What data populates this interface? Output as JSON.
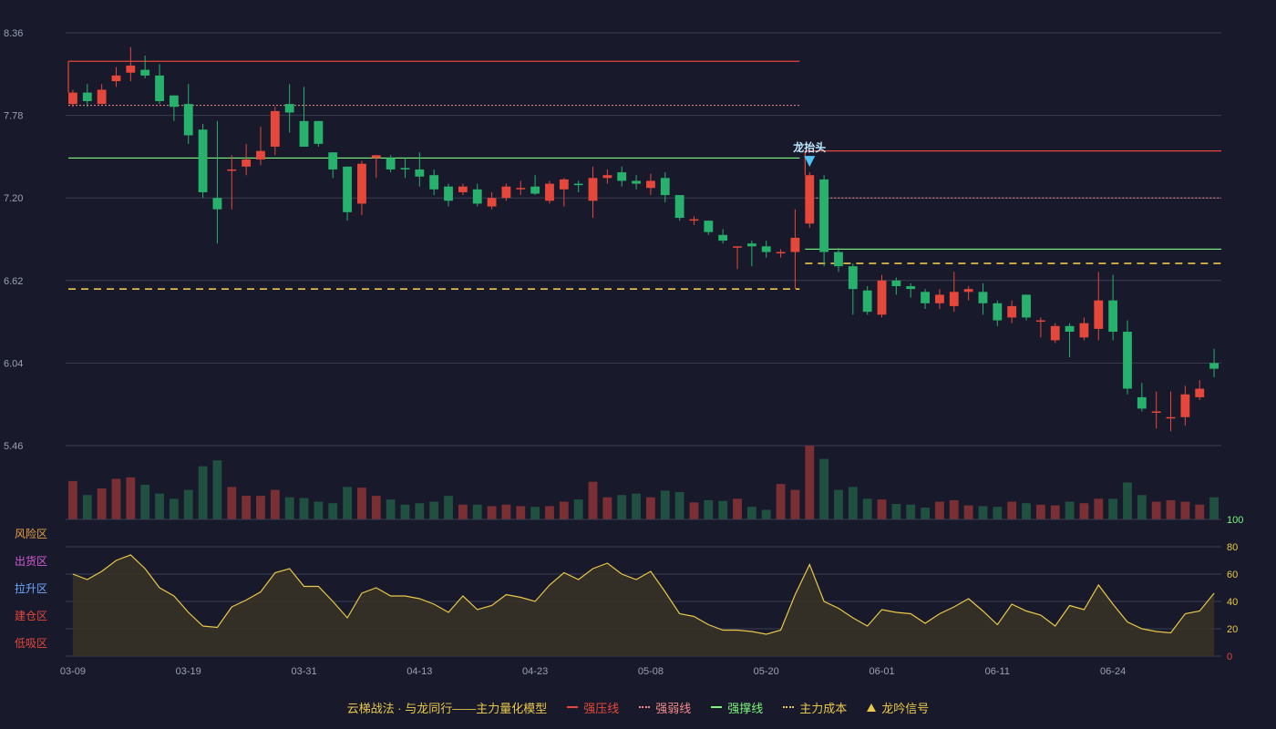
{
  "colors": {
    "up": "#e5473a",
    "down": "#27b16c",
    "vol_up": "#7a2f34",
    "vol_down": "#1f5040",
    "grid": "#3a3d52",
    "resist": "#e5473a",
    "weak": "#f48b8b",
    "support": "#7cf57c",
    "cost": "#e8c84a",
    "signal": "#4fc3f7",
    "osc_line": "#e8c84a",
    "osc_fill": "#3a3426",
    "axis_text": "#9aa0b4"
  },
  "chart_data": {
    "type": "candlestick",
    "price_axis": {
      "ticks": [
        "8.36",
        "7.78",
        "7.20",
        "6.62",
        "6.04",
        "5.46"
      ],
      "range": [
        5.46,
        8.36
      ]
    },
    "dates": [
      "03-09",
      "03-19",
      "03-31",
      "04-13",
      "04-23",
      "05-08",
      "05-20",
      "06-01",
      "06-11",
      "06-24"
    ],
    "date_index": [
      0,
      8,
      16,
      24,
      32,
      40,
      48,
      56,
      64,
      72
    ],
    "ohlc": [
      [
        7.86,
        7.94,
        7.84,
        7.96
      ],
      [
        7.94,
        7.88,
        7.84,
        8.0
      ],
      [
        7.86,
        7.96,
        7.86,
        8.0
      ],
      [
        8.02,
        8.06,
        7.98,
        8.12
      ],
      [
        8.08,
        8.13,
        8.02,
        8.26
      ],
      [
        8.1,
        8.06,
        8.04,
        8.2
      ],
      [
        8.06,
        7.88,
        7.86,
        8.14
      ],
      [
        7.92,
        7.84,
        7.74,
        7.92
      ],
      [
        7.86,
        7.64,
        7.58,
        8.0
      ],
      [
        7.68,
        7.24,
        7.2,
        7.72
      ],
      [
        7.2,
        7.12,
        6.88,
        7.74
      ],
      [
        7.4,
        7.4,
        7.12,
        7.5
      ],
      [
        7.42,
        7.47,
        7.36,
        7.58
      ],
      [
        7.47,
        7.53,
        7.43,
        7.7
      ],
      [
        7.56,
        7.81,
        7.5,
        7.84
      ],
      [
        7.86,
        7.8,
        7.66,
        8.0
      ],
      [
        7.74,
        7.56,
        7.56,
        7.98
      ],
      [
        7.74,
        7.58,
        7.56,
        7.74
      ],
      [
        7.52,
        7.4,
        7.34,
        7.52
      ],
      [
        7.42,
        7.1,
        7.04,
        7.42
      ],
      [
        7.16,
        7.44,
        7.08,
        7.46
      ],
      [
        7.48,
        7.5,
        7.34,
        7.5
      ],
      [
        7.48,
        7.4,
        7.38,
        7.5
      ],
      [
        7.41,
        7.4,
        7.34,
        7.48
      ],
      [
        7.4,
        7.35,
        7.28,
        7.52
      ],
      [
        7.36,
        7.26,
        7.22,
        7.4
      ],
      [
        7.28,
        7.18,
        7.14,
        7.3
      ],
      [
        7.24,
        7.28,
        7.22,
        7.3
      ],
      [
        7.26,
        7.16,
        7.14,
        7.3
      ],
      [
        7.14,
        7.2,
        7.12,
        7.24
      ],
      [
        7.2,
        7.28,
        7.18,
        7.3
      ],
      [
        7.27,
        7.27,
        7.22,
        7.32
      ],
      [
        7.28,
        7.23,
        7.22,
        7.36
      ],
      [
        7.18,
        7.3,
        7.16,
        7.32
      ],
      [
        7.26,
        7.33,
        7.14,
        7.34
      ],
      [
        7.3,
        7.29,
        7.24,
        7.32
      ],
      [
        7.18,
        7.34,
        7.06,
        7.42
      ],
      [
        7.34,
        7.36,
        7.3,
        7.4
      ],
      [
        7.38,
        7.32,
        7.28,
        7.42
      ],
      [
        7.32,
        7.3,
        7.26,
        7.36
      ],
      [
        7.27,
        7.32,
        7.22,
        7.37
      ],
      [
        7.34,
        7.22,
        7.17,
        7.38
      ],
      [
        7.22,
        7.06,
        7.04,
        7.22
      ],
      [
        7.05,
        7.05,
        7.01,
        7.07
      ],
      [
        7.04,
        6.96,
        6.94,
        7.04
      ],
      [
        6.94,
        6.9,
        6.88,
        6.98
      ],
      [
        6.86,
        6.86,
        6.7,
        6.86
      ],
      [
        6.88,
        6.86,
        6.72,
        6.9
      ],
      [
        6.86,
        6.82,
        6.78,
        6.9
      ],
      [
        6.82,
        6.82,
        6.78,
        6.84
      ],
      [
        6.82,
        6.92,
        6.56,
        7.12
      ],
      [
        7.02,
        7.36,
        6.99,
        7.38
      ],
      [
        7.33,
        6.82,
        6.72,
        7.36
      ],
      [
        6.82,
        6.72,
        6.68,
        6.85
      ],
      [
        6.72,
        6.56,
        6.38,
        6.74
      ],
      [
        6.55,
        6.4,
        6.38,
        6.58
      ],
      [
        6.38,
        6.62,
        6.36,
        6.66
      ],
      [
        6.62,
        6.58,
        6.52,
        6.64
      ],
      [
        6.58,
        6.56,
        6.5,
        6.6
      ],
      [
        6.54,
        6.46,
        6.42,
        6.56
      ],
      [
        6.46,
        6.52,
        6.42,
        6.56
      ],
      [
        6.44,
        6.54,
        6.4,
        6.68
      ],
      [
        6.54,
        6.56,
        6.48,
        6.58
      ],
      [
        6.54,
        6.46,
        6.38,
        6.6
      ],
      [
        6.46,
        6.34,
        6.3,
        6.48
      ],
      [
        6.36,
        6.44,
        6.32,
        6.48
      ],
      [
        6.52,
        6.36,
        6.34,
        6.52
      ],
      [
        6.34,
        6.34,
        6.22,
        6.36
      ],
      [
        6.2,
        6.3,
        6.18,
        6.32
      ],
      [
        6.3,
        6.26,
        6.08,
        6.32
      ],
      [
        6.22,
        6.32,
        6.2,
        6.36
      ],
      [
        6.28,
        6.48,
        6.2,
        6.68
      ],
      [
        6.48,
        6.26,
        6.2,
        6.66
      ],
      [
        6.26,
        5.86,
        5.82,
        6.34
      ],
      [
        5.8,
        5.72,
        5.7,
        5.9
      ],
      [
        5.7,
        5.7,
        5.58,
        5.84
      ],
      [
        5.66,
        5.66,
        5.56,
        5.84
      ],
      [
        5.66,
        5.82,
        5.6,
        5.88
      ],
      [
        5.8,
        5.86,
        5.78,
        5.92
      ],
      [
        6.04,
        6.0,
        5.94,
        6.14
      ]
    ],
    "volume": [
      0.52,
      0.33,
      0.42,
      0.55,
      0.57,
      0.47,
      0.35,
      0.28,
      0.4,
      0.72,
      0.8,
      0.44,
      0.32,
      0.32,
      0.4,
      0.3,
      0.29,
      0.24,
      0.22,
      0.44,
      0.43,
      0.32,
      0.27,
      0.2,
      0.22,
      0.24,
      0.32,
      0.2,
      0.2,
      0.18,
      0.2,
      0.18,
      0.17,
      0.18,
      0.24,
      0.27,
      0.51,
      0.3,
      0.33,
      0.35,
      0.3,
      0.39,
      0.37,
      0.23,
      0.26,
      0.25,
      0.28,
      0.17,
      0.13,
      0.48,
      0.4,
      1.0,
      0.82,
      0.4,
      0.44,
      0.28,
      0.27,
      0.21,
      0.2,
      0.16,
      0.24,
      0.26,
      0.19,
      0.18,
      0.17,
      0.24,
      0.22,
      0.2,
      0.19,
      0.24,
      0.22,
      0.28,
      0.28,
      0.5,
      0.33,
      0.24,
      0.26,
      0.24,
      0.2,
      0.3
    ],
    "levels": [
      {
        "kind": "resist",
        "value": 8.16,
        "from": 0,
        "to": 50
      },
      {
        "kind": "weak",
        "value": 7.85,
        "from": 0,
        "to": 50
      },
      {
        "kind": "support",
        "value": 7.48,
        "from": 0,
        "to": 50
      },
      {
        "kind": "cost",
        "value": 6.56,
        "from": 0,
        "to": 50
      },
      {
        "kind": "resist",
        "value": 7.53,
        "from": 51,
        "to": 79
      },
      {
        "kind": "weak",
        "value": 7.2,
        "from": 51,
        "to": 79
      },
      {
        "kind": "support",
        "value": 6.84,
        "from": 51,
        "to": 79
      },
      {
        "kind": "cost",
        "value": 6.74,
        "from": 51,
        "to": 79
      }
    ],
    "signal": {
      "index": 51,
      "label": "龙抬头"
    },
    "oscillator": {
      "ticks": [
        "100",
        "80",
        "60",
        "40",
        "20",
        "0"
      ],
      "range": [
        0,
        100
      ],
      "zones": [
        "风险区",
        "出货区",
        "拉升区",
        "建仓区",
        "低吸区"
      ],
      "zone_colors": [
        "#e8a040",
        "#d65cd6",
        "#6fa8ff",
        "#e5473a",
        "#e5473a"
      ],
      "values": [
        60,
        56,
        62,
        70,
        74,
        64,
        50,
        44,
        32,
        22,
        21,
        36,
        41,
        47,
        61,
        64,
        51,
        51,
        40,
        28,
        46,
        50,
        44,
        44,
        42,
        38,
        32,
        44,
        34,
        37,
        45,
        43,
        40,
        52,
        61,
        56,
        64,
        68,
        60,
        56,
        62,
        47,
        31,
        29,
        23,
        19,
        19,
        18,
        16,
        19,
        45,
        67,
        40,
        35,
        28,
        22,
        34,
        32,
        31,
        24,
        31,
        36,
        42,
        33,
        23,
        38,
        33,
        30,
        22,
        37,
        34,
        52,
        38,
        25,
        20,
        18,
        17,
        31,
        33,
        46
      ]
    }
  },
  "legend": {
    "title": "云梯战法 · 与龙同行——主力量化模型",
    "items": [
      "强压线",
      "强弱线",
      "强撑线",
      "主力成本",
      "龙吟信号"
    ]
  }
}
